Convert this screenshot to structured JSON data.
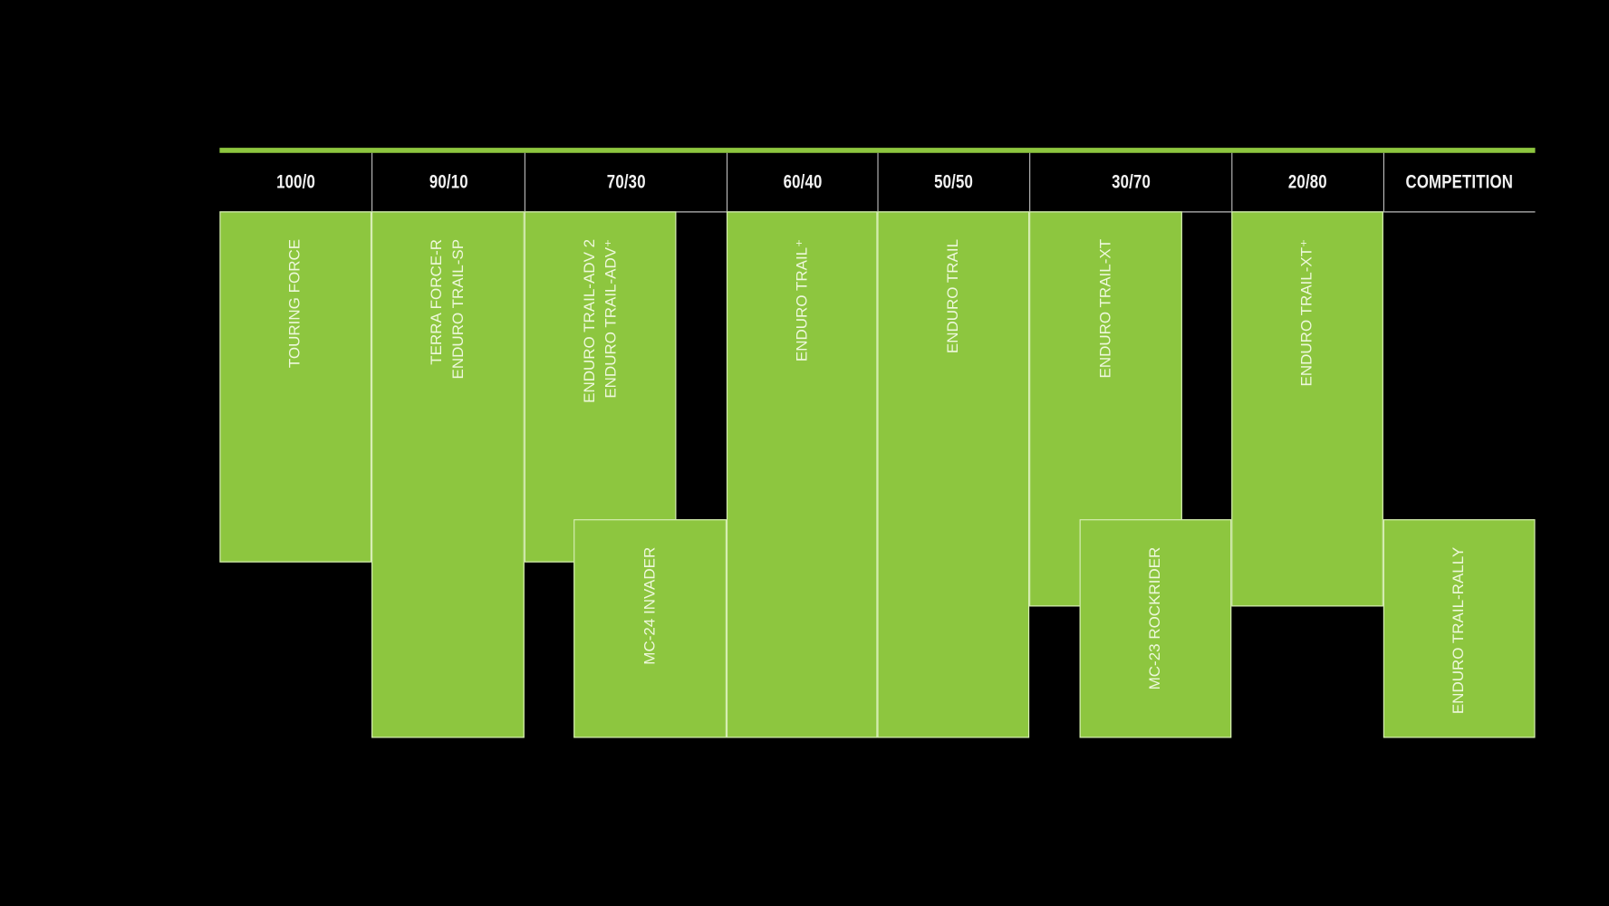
{
  "colors": {
    "accent_green": "#8dc63f",
    "background": "#000000",
    "text": "#eef8dc"
  },
  "header": {
    "columns": [
      "100/0",
      "90/10",
      "70/30",
      "60/40",
      "50/50",
      "30/70",
      "20/80",
      "COMPETITION"
    ]
  },
  "blocks": [
    {
      "lines": [
        "TOURING FORCE"
      ]
    },
    {
      "lines": [
        "TERRA FORCE-R",
        "ENDURO TRAIL-SP"
      ]
    },
    {
      "lines": [
        "ENDURO TRAIL-ADV 2",
        "ENDURO TRAIL-ADV⁺"
      ]
    },
    {
      "lines": [
        "MC-24 INVADER"
      ]
    },
    {
      "lines": [
        "ENDURO TRAIL⁺"
      ]
    },
    {
      "lines": [
        "ENDURO TRAIL"
      ]
    },
    {
      "lines": [
        "ENDURO TRAIL-XT"
      ]
    },
    {
      "lines": [
        "MC-23 ROCKRIDER"
      ]
    },
    {
      "lines": [
        "ENDURO TRAIL-XT⁺"
      ]
    },
    {
      "lines": [
        "ENDURO TRAIL-RALLY"
      ]
    }
  ]
}
